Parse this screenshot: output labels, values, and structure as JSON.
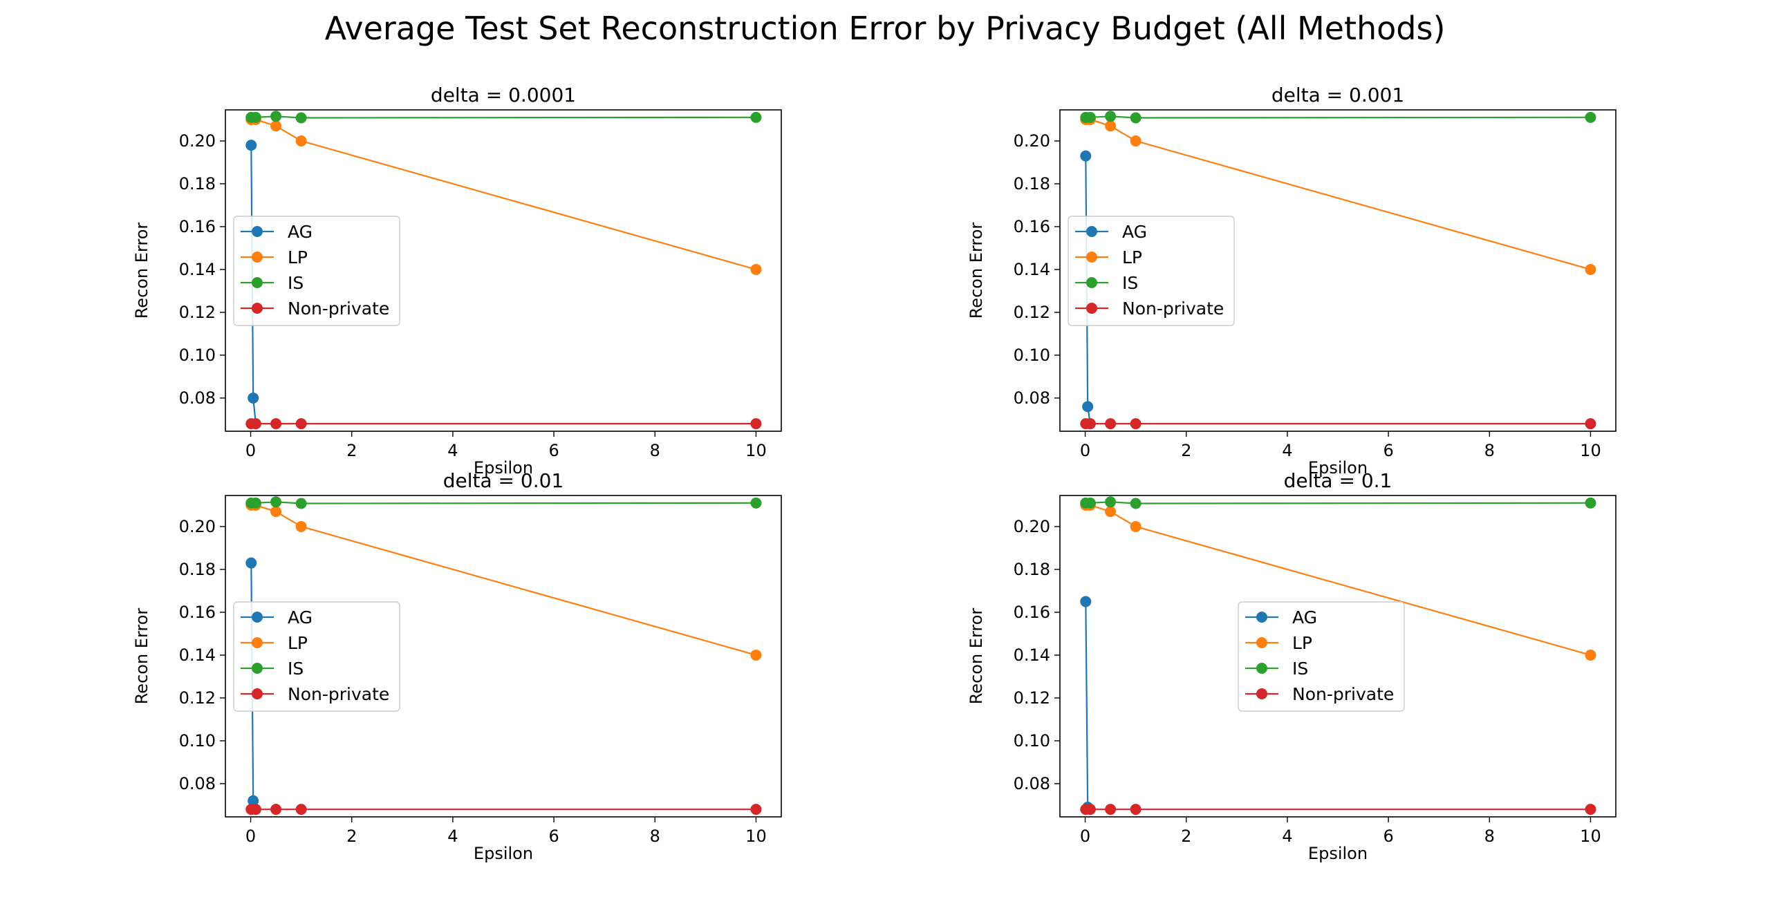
{
  "figure": {
    "title": "Average Test Set Reconstruction Error by Privacy Budget (All Methods)"
  },
  "chart_data": [
    {
      "type": "line",
      "title": "delta = 0.0001",
      "xlabel": "Epsilon",
      "ylabel": "Recon Error",
      "xlim": [
        -0.5,
        10.5
      ],
      "ylim": [
        0.0645,
        0.2145
      ],
      "xticks": [
        "0",
        "2",
        "4",
        "6",
        "8",
        "10"
      ],
      "yticks": [
        "0.08",
        "0.10",
        "0.12",
        "0.14",
        "0.16",
        "0.18",
        "0.20"
      ],
      "legend": "center-left",
      "series": [
        {
          "name": "AG",
          "color": "#1f77b4",
          "x": [
            0.01,
            0.05,
            0.1
          ],
          "y": [
            0.198,
            0.08,
            0.068
          ]
        },
        {
          "name": "LP",
          "color": "#ff7f0e",
          "x": [
            0.01,
            0.1,
            0.5,
            1,
            10
          ],
          "y": [
            0.21,
            0.21,
            0.207,
            0.2,
            0.14
          ]
        },
        {
          "name": "IS",
          "color": "#2ca02c",
          "x": [
            0.01,
            0.1,
            0.5,
            1,
            10
          ],
          "y": [
            0.211,
            0.211,
            0.2115,
            0.2108,
            0.211
          ]
        },
        {
          "name": "Non-private",
          "color": "#d62728",
          "x": [
            0.01,
            0.1,
            0.5,
            1,
            10
          ],
          "y": [
            0.068,
            0.068,
            0.068,
            0.068,
            0.068
          ]
        }
      ]
    },
    {
      "type": "line",
      "title": "delta = 0.001",
      "xlabel": "Epsilon",
      "ylabel": "Recon Error",
      "xlim": [
        -0.5,
        10.5
      ],
      "ylim": [
        0.0645,
        0.2145
      ],
      "xticks": [
        "0",
        "2",
        "4",
        "6",
        "8",
        "10"
      ],
      "yticks": [
        "0.08",
        "0.10",
        "0.12",
        "0.14",
        "0.16",
        "0.18",
        "0.20"
      ],
      "legend": "center-left",
      "series": [
        {
          "name": "AG",
          "color": "#1f77b4",
          "x": [
            0.01,
            0.05,
            0.1
          ],
          "y": [
            0.193,
            0.076,
            0.068
          ]
        },
        {
          "name": "LP",
          "color": "#ff7f0e",
          "x": [
            0.01,
            0.1,
            0.5,
            1,
            10
          ],
          "y": [
            0.21,
            0.21,
            0.207,
            0.2,
            0.14
          ]
        },
        {
          "name": "IS",
          "color": "#2ca02c",
          "x": [
            0.01,
            0.1,
            0.5,
            1,
            10
          ],
          "y": [
            0.211,
            0.211,
            0.2115,
            0.2108,
            0.211
          ]
        },
        {
          "name": "Non-private",
          "color": "#d62728",
          "x": [
            0.01,
            0.1,
            0.5,
            1,
            10
          ],
          "y": [
            0.068,
            0.068,
            0.068,
            0.068,
            0.068
          ]
        }
      ]
    },
    {
      "type": "line",
      "title": "delta = 0.01",
      "xlabel": "Epsilon",
      "ylabel": "Recon Error",
      "xlim": [
        -0.5,
        10.5
      ],
      "ylim": [
        0.0645,
        0.2145
      ],
      "xticks": [
        "0",
        "2",
        "4",
        "6",
        "8",
        "10"
      ],
      "yticks": [
        "0.08",
        "0.10",
        "0.12",
        "0.14",
        "0.16",
        "0.18",
        "0.20"
      ],
      "legend": "center-left",
      "series": [
        {
          "name": "AG",
          "color": "#1f77b4",
          "x": [
            0.01,
            0.05,
            0.1
          ],
          "y": [
            0.183,
            0.072,
            0.068
          ]
        },
        {
          "name": "LP",
          "color": "#ff7f0e",
          "x": [
            0.01,
            0.1,
            0.5,
            1,
            10
          ],
          "y": [
            0.21,
            0.21,
            0.207,
            0.2,
            0.14
          ]
        },
        {
          "name": "IS",
          "color": "#2ca02c",
          "x": [
            0.01,
            0.1,
            0.5,
            1,
            10
          ],
          "y": [
            0.211,
            0.211,
            0.2115,
            0.2108,
            0.211
          ]
        },
        {
          "name": "Non-private",
          "color": "#d62728",
          "x": [
            0.01,
            0.1,
            0.5,
            1,
            10
          ],
          "y": [
            0.068,
            0.068,
            0.068,
            0.068,
            0.068
          ]
        }
      ]
    },
    {
      "type": "line",
      "title": "delta = 0.1",
      "xlabel": "Epsilon",
      "ylabel": "Recon Error",
      "xlim": [
        -0.5,
        10.5
      ],
      "ylim": [
        0.0645,
        0.2145
      ],
      "xticks": [
        "0",
        "2",
        "4",
        "6",
        "8",
        "10"
      ],
      "yticks": [
        "0.08",
        "0.10",
        "0.12",
        "0.14",
        "0.16",
        "0.18",
        "0.20"
      ],
      "legend": "center",
      "series": [
        {
          "name": "AG",
          "color": "#1f77b4",
          "x": [
            0.01,
            0.05,
            0.1
          ],
          "y": [
            0.165,
            0.069,
            0.068
          ]
        },
        {
          "name": "LP",
          "color": "#ff7f0e",
          "x": [
            0.01,
            0.1,
            0.5,
            1,
            10
          ],
          "y": [
            0.21,
            0.21,
            0.207,
            0.2,
            0.14
          ]
        },
        {
          "name": "IS",
          "color": "#2ca02c",
          "x": [
            0.01,
            0.1,
            0.5,
            1,
            10
          ],
          "y": [
            0.211,
            0.211,
            0.2115,
            0.2108,
            0.211
          ]
        },
        {
          "name": "Non-private",
          "color": "#d62728",
          "x": [
            0.01,
            0.1,
            0.5,
            1,
            10
          ],
          "y": [
            0.068,
            0.068,
            0.068,
            0.068,
            0.068
          ]
        }
      ]
    }
  ]
}
